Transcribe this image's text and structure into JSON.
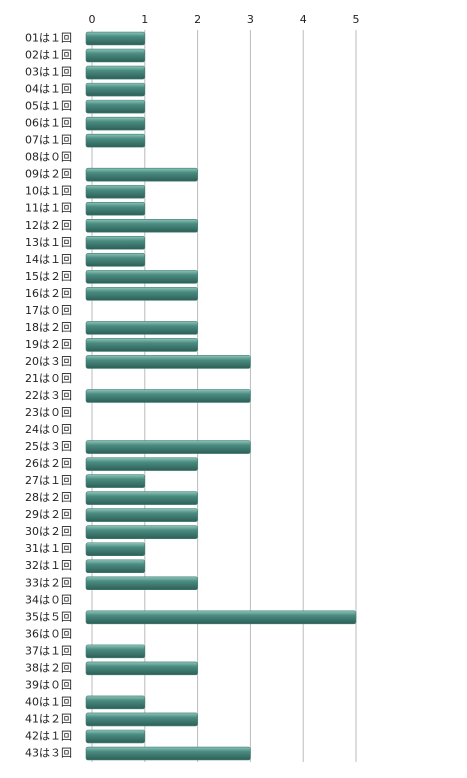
{
  "chart_data": {
    "type": "bar",
    "orientation": "horizontal",
    "categories": [
      "01は１回",
      "02は１回",
      "03は１回",
      "04は１回",
      "05は１回",
      "06は１回",
      "07は１回",
      "08は０回",
      "09は２回",
      "10は１回",
      "11は１回",
      "12は２回",
      "13は１回",
      "14は１回",
      "15は２回",
      "16は２回",
      "17は０回",
      "18は２回",
      "19は２回",
      "20は３回",
      "21は０回",
      "22は３回",
      "23は０回",
      "24は０回",
      "25は３回",
      "26は２回",
      "27は１回",
      "28は２回",
      "29は２回",
      "30は２回",
      "31は１回",
      "32は１回",
      "33は２回",
      "34は０回",
      "35は５回",
      "36は０回",
      "37は１回",
      "38は２回",
      "39は０回",
      "40は１回",
      "41は２回",
      "42は１回",
      "43は３回"
    ],
    "values": [
      1,
      1,
      1,
      1,
      1,
      1,
      1,
      0,
      2,
      1,
      1,
      2,
      1,
      1,
      2,
      2,
      0,
      2,
      2,
      3,
      0,
      3,
      0,
      0,
      3,
      2,
      1,
      2,
      2,
      2,
      1,
      1,
      2,
      0,
      5,
      0,
      1,
      2,
      0,
      1,
      2,
      1,
      3
    ],
    "color": "#3f7f74",
    "xlim": [
      0,
      5
    ],
    "xticks": [
      0,
      1,
      2,
      3,
      4,
      5
    ],
    "grid": true
  }
}
